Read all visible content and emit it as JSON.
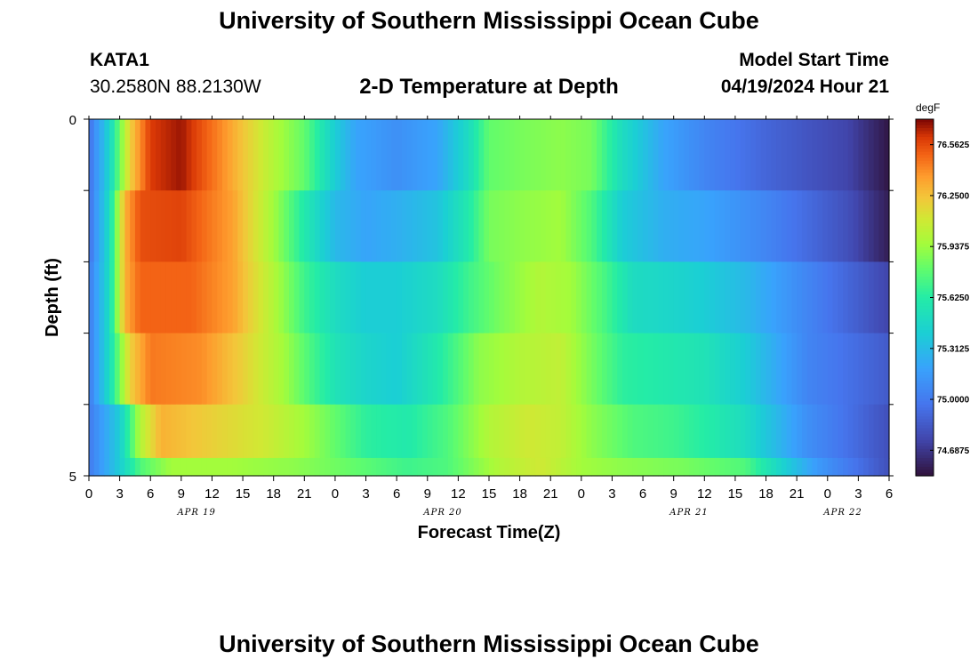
{
  "header": {
    "title": "University of Southern Mississippi Ocean Cube",
    "station": "KATA1",
    "coords": "30.2580N  88.2130W",
    "subtitle": "2-D Temperature at Depth",
    "model_label": "Model Start Time",
    "model_time": "04/19/2024 Hour 21"
  },
  "footer": {
    "title": "University of Southern Mississippi Ocean Cube"
  },
  "chart_data": {
    "type": "heatmap",
    "title": "2-D Temperature at Depth",
    "xlabel": "Forecast Time(Z)",
    "ylabel": "Depth (ft)",
    "x_hours_range": [
      0,
      78
    ],
    "ylim": [
      0,
      5
    ],
    "y_tick_labels": [
      "0",
      "5"
    ],
    "x_tick_labels": [
      "0",
      "3",
      "6",
      "9",
      "12",
      "15",
      "18",
      "21",
      "0",
      "3",
      "6",
      "9",
      "12",
      "15",
      "18",
      "21",
      "0",
      "3",
      "6",
      "9",
      "12",
      "15",
      "18",
      "21",
      "0",
      "3",
      "6"
    ],
    "date_labels": [
      {
        "label": "APR 19",
        "hour": 10.5
      },
      {
        "label": "APR 20",
        "hour": 34.5
      },
      {
        "label": "APR 21",
        "hour": 58.5
      },
      {
        "label": "APR 22",
        "hour": 73.5
      }
    ],
    "colorbar": {
      "unit": "degF",
      "min": 74.5312,
      "max": 76.7187,
      "tick_labels": [
        "76.5625",
        "76.2500",
        "75.9375",
        "75.6250",
        "75.3125",
        "75.0000",
        "74.6875"
      ]
    },
    "depth_layers": [
      {
        "depth_ft": 0.5,
        "keyframes": [
          [
            0,
            74.95
          ],
          [
            2,
            75.45
          ],
          [
            4,
            76.2
          ],
          [
            6,
            76.6
          ],
          [
            9,
            76.68
          ],
          [
            13,
            76.4
          ],
          [
            18,
            76.0
          ],
          [
            21,
            75.8
          ],
          [
            24,
            75.4
          ],
          [
            26,
            75.2
          ],
          [
            30,
            75.1
          ],
          [
            34,
            75.2
          ],
          [
            37,
            75.5
          ],
          [
            39,
            75.8
          ],
          [
            42,
            75.85
          ],
          [
            46,
            75.9
          ],
          [
            49,
            75.85
          ],
          [
            52,
            75.5
          ],
          [
            56,
            75.2
          ],
          [
            60,
            75.05
          ],
          [
            66,
            74.9
          ],
          [
            74,
            74.75
          ],
          [
            78,
            74.55
          ]
        ]
      },
      {
        "depth_ft": 1.5,
        "keyframes": [
          [
            0,
            74.95
          ],
          [
            2,
            75.5
          ],
          [
            3.5,
            76.3
          ],
          [
            5,
            76.55
          ],
          [
            9,
            76.58
          ],
          [
            14,
            76.35
          ],
          [
            18,
            75.95
          ],
          [
            21,
            75.6
          ],
          [
            24,
            75.3
          ],
          [
            27,
            75.2
          ],
          [
            30,
            75.25
          ],
          [
            34,
            75.35
          ],
          [
            37,
            75.6
          ],
          [
            39,
            75.85
          ],
          [
            42,
            75.9
          ],
          [
            46,
            75.95
          ],
          [
            49,
            75.75
          ],
          [
            52,
            75.4
          ],
          [
            56,
            75.25
          ],
          [
            60,
            75.2
          ],
          [
            66,
            75.05
          ],
          [
            74,
            74.8
          ],
          [
            78,
            74.58
          ]
        ]
      },
      {
        "depth_ft": 2.5,
        "keyframes": [
          [
            0,
            75.0
          ],
          [
            2,
            75.5
          ],
          [
            3.5,
            76.3
          ],
          [
            5,
            76.5
          ],
          [
            10,
            76.5
          ],
          [
            14,
            76.35
          ],
          [
            18,
            76.0
          ],
          [
            21,
            75.7
          ],
          [
            24,
            75.5
          ],
          [
            27,
            75.4
          ],
          [
            30,
            75.4
          ],
          [
            34,
            75.5
          ],
          [
            37,
            75.7
          ],
          [
            40,
            75.85
          ],
          [
            44,
            76.0
          ],
          [
            47,
            75.95
          ],
          [
            50,
            75.75
          ],
          [
            53,
            75.5
          ],
          [
            57,
            75.45
          ],
          [
            60,
            75.4
          ],
          [
            64,
            75.3
          ],
          [
            70,
            75.05
          ],
          [
            78,
            74.75
          ]
        ]
      },
      {
        "depth_ft": 3.5,
        "keyframes": [
          [
            0,
            75.0
          ],
          [
            2,
            75.5
          ],
          [
            4,
            76.2
          ],
          [
            6,
            76.45
          ],
          [
            11,
            76.4
          ],
          [
            15,
            76.2
          ],
          [
            19,
            75.95
          ],
          [
            22,
            75.7
          ],
          [
            24,
            75.55
          ],
          [
            27,
            75.45
          ],
          [
            30,
            75.4
          ],
          [
            34,
            75.6
          ],
          [
            38,
            75.9
          ],
          [
            42,
            76.0
          ],
          [
            46,
            76.05
          ],
          [
            49,
            75.85
          ],
          [
            52,
            75.65
          ],
          [
            56,
            75.6
          ],
          [
            60,
            75.55
          ],
          [
            64,
            75.4
          ],
          [
            70,
            75.05
          ],
          [
            78,
            74.85
          ]
        ]
      },
      {
        "depth_ft": 4.5,
        "keyframes": [
          [
            0,
            75.0
          ],
          [
            3,
            75.4
          ],
          [
            5,
            76.0
          ],
          [
            7,
            76.3
          ],
          [
            12,
            76.2
          ],
          [
            17,
            76.1
          ],
          [
            21,
            75.95
          ],
          [
            24,
            75.8
          ],
          [
            27,
            75.65
          ],
          [
            31,
            75.6
          ],
          [
            35,
            75.75
          ],
          [
            39,
            76.0
          ],
          [
            43,
            76.1
          ],
          [
            46,
            76.05
          ],
          [
            49,
            75.9
          ],
          [
            53,
            75.75
          ],
          [
            57,
            75.7
          ],
          [
            61,
            75.6
          ],
          [
            64,
            75.5
          ],
          [
            67,
            75.3
          ],
          [
            70,
            75.1
          ],
          [
            78,
            74.8
          ]
        ]
      },
      {
        "depth_ft": 5.0,
        "keyframes": [
          [
            0,
            75.0
          ],
          [
            3,
            75.4
          ],
          [
            5,
            75.75
          ],
          [
            8,
            75.95
          ],
          [
            14,
            75.95
          ],
          [
            20,
            75.9
          ],
          [
            26,
            75.8
          ],
          [
            31,
            75.7
          ],
          [
            35,
            75.75
          ],
          [
            40,
            76.0
          ],
          [
            44,
            76.1
          ],
          [
            48,
            75.95
          ],
          [
            52,
            75.9
          ],
          [
            58,
            75.85
          ],
          [
            64,
            75.75
          ],
          [
            68,
            75.4
          ],
          [
            71,
            75.15
          ],
          [
            75,
            74.95
          ],
          [
            78,
            74.8
          ]
        ]
      }
    ]
  }
}
